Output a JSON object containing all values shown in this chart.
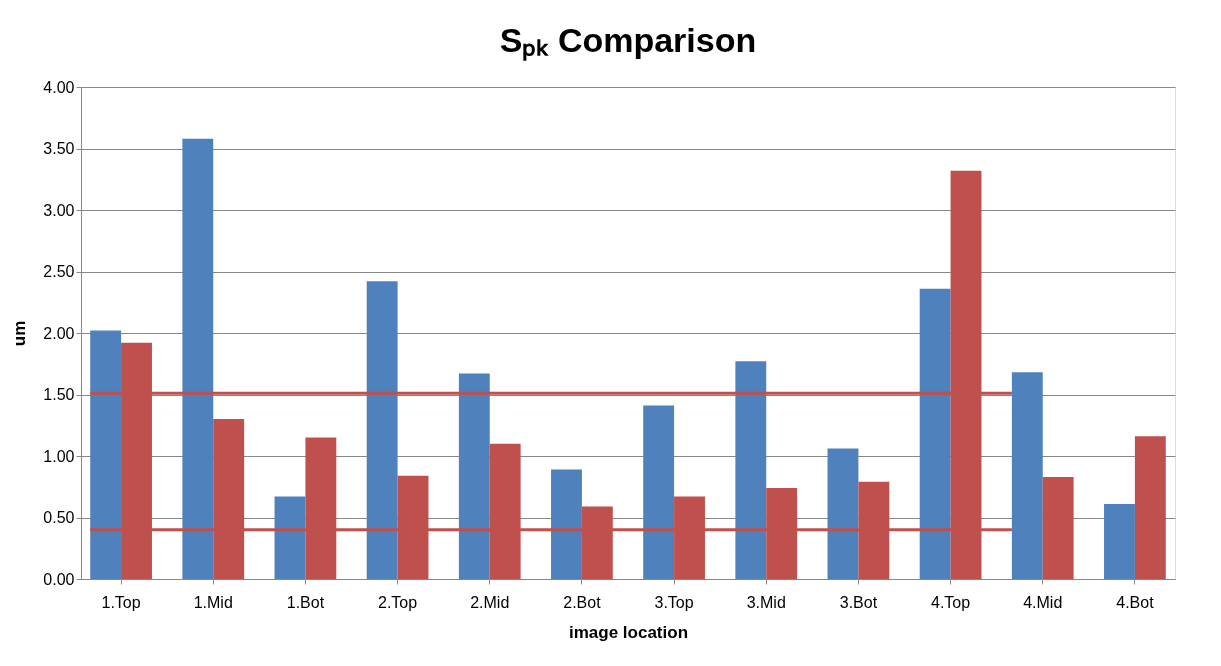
{
  "chart_data": {
    "type": "bar",
    "title": "Sₚₖ Comparison",
    "xlabel": "image location",
    "ylabel": "um",
    "categories": [
      "1.Top",
      "1.Mid",
      "1.Bot",
      "2.Top",
      "2.Mid",
      "2.Bot",
      "3.Top",
      "3.Mid",
      "3.Bot",
      "4.Top",
      "4.Mid",
      "4.Bot"
    ],
    "series": [
      {
        "color": "#4f81bd",
        "values": [
          2.02,
          3.58,
          0.67,
          2.42,
          1.67,
          0.89,
          1.41,
          1.77,
          1.06,
          2.36,
          1.68,
          0.61
        ]
      },
      {
        "color": "#c0504d",
        "values": [
          1.92,
          1.3,
          1.15,
          0.84,
          1.1,
          0.59,
          0.67,
          0.74,
          0.79,
          3.32,
          0.83,
          1.16
        ]
      },
      {
        "type": "line",
        "color": "#c0504d",
        "values": [
          1.51,
          1.51,
          1.51,
          1.51,
          1.51,
          1.51,
          1.51,
          1.51,
          1.51,
          1.51,
          1.51,
          null
        ]
      },
      {
        "type": "line",
        "color": "#c0504d",
        "values": [
          0.4,
          0.4,
          0.4,
          0.4,
          0.4,
          0.4,
          0.4,
          0.4,
          0.4,
          0.4,
          0.4,
          null
        ]
      }
    ],
    "ylim": [
      0,
      4
    ],
    "yticks": [
      {
        "value": 0,
        "label": "0.00"
      },
      {
        "value": 0.5,
        "label": "0.50"
      },
      {
        "value": 1,
        "label": "1.00"
      },
      {
        "value": 1.5,
        "label": "1.50"
      },
      {
        "value": 2,
        "label": "2.00"
      },
      {
        "value": 2.5,
        "label": "2.50"
      },
      {
        "value": 3,
        "label": "3.00"
      },
      {
        "value": 3.5,
        "label": "3.50"
      },
      {
        "value": 4,
        "label": "4.00"
      }
    ],
    "grid": "y"
  }
}
